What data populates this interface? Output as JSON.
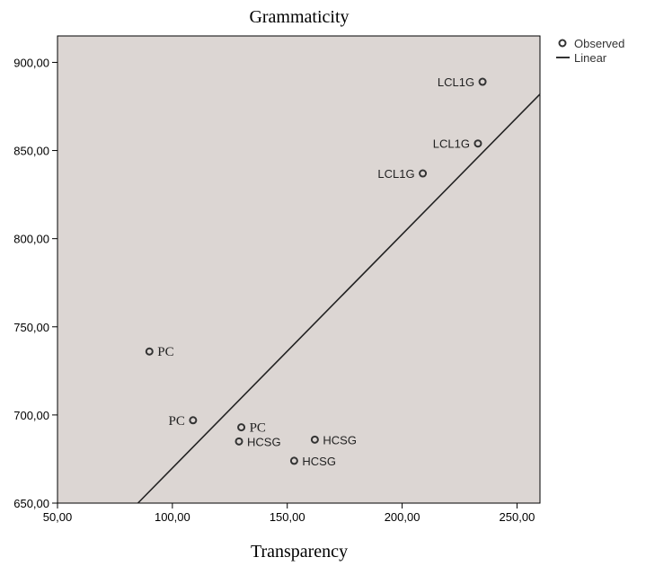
{
  "chart_data": {
    "type": "scatter",
    "title": "Grammaticity",
    "xlabel": "Transparency",
    "ylabel": "",
    "xlim": [
      50,
      260
    ],
    "ylim": [
      650,
      915
    ],
    "x_ticks": [
      50,
      100,
      150,
      200,
      250
    ],
    "x_tick_labels": [
      "50,00",
      "100,00",
      "150,00",
      "200,00",
      "250,00"
    ],
    "y_ticks": [
      650,
      700,
      750,
      800,
      850,
      900
    ],
    "y_tick_labels": [
      "650,00",
      "700,00",
      "750,00",
      "800,00",
      "850,00",
      "900,00"
    ],
    "grid": false,
    "legend_position": "top-right",
    "plot_background": "#dcd6d3",
    "series": [
      {
        "name": "Observed",
        "marker": "hollow-circle",
        "points": [
          {
            "x": 235,
            "y": 889,
            "label": "LCL1G",
            "label_side": "left",
            "label_font": "sans"
          },
          {
            "x": 233,
            "y": 854,
            "label": "LCL1G",
            "label_side": "left",
            "label_font": "sans"
          },
          {
            "x": 209,
            "y": 837,
            "label": "LCL1G",
            "label_side": "left",
            "label_font": "sans"
          },
          {
            "x": 90,
            "y": 736,
            "label": "PC",
            "label_side": "right",
            "label_font": "serif"
          },
          {
            "x": 109,
            "y": 697,
            "label": "PC",
            "label_side": "left",
            "label_font": "serif"
          },
          {
            "x": 130,
            "y": 693,
            "label": "PC",
            "label_side": "right",
            "label_font": "serif"
          },
          {
            "x": 129,
            "y": 685,
            "label": "HCSG",
            "label_side": "right",
            "label_font": "sans"
          },
          {
            "x": 162,
            "y": 686,
            "label": "HCSG",
            "label_side": "right",
            "label_font": "sans"
          },
          {
            "x": 153,
            "y": 674,
            "label": "HCSG",
            "label_side": "right",
            "label_font": "sans"
          }
        ]
      },
      {
        "name": "Linear",
        "type": "line",
        "points": [
          {
            "x": 85,
            "y": 650
          },
          {
            "x": 260,
            "y": 882
          }
        ]
      }
    ]
  }
}
